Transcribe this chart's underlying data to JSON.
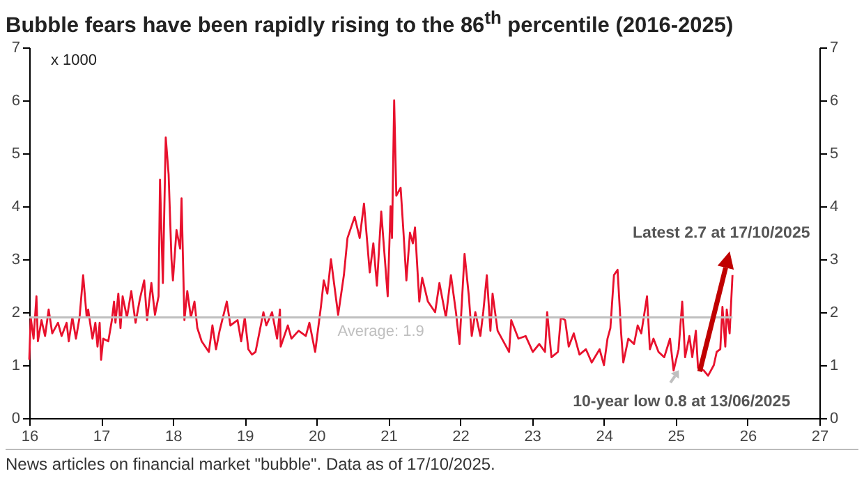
{
  "chart_data": {
    "type": "line",
    "title": "Bubble fears have been rapidly rising to the 86$^{th}$ percentile (2016-2025)",
    "ylabel": "x 1000",
    "x": [
      16.0,
      16.02,
      16.06,
      16.1,
      16.12,
      16.17,
      16.22,
      16.27,
      16.32,
      16.4,
      16.45,
      16.52,
      16.55,
      16.6,
      16.65,
      16.7,
      16.75,
      16.8,
      16.82,
      16.88,
      16.92,
      16.95,
      16.98,
      17.0,
      17.03,
      17.1,
      17.15,
      17.18,
      17.2,
      17.24,
      17.27,
      17.3,
      17.36,
      17.42,
      17.48,
      17.54,
      17.6,
      17.64,
      17.7,
      17.75,
      17.8,
      17.82,
      17.86,
      17.9,
      17.94,
      17.98,
      18.0,
      18.05,
      18.1,
      18.12,
      18.16,
      18.2,
      18.25,
      18.3,
      18.34,
      18.4,
      18.5,
      18.55,
      18.6,
      18.65,
      18.75,
      18.8,
      18.9,
      18.95,
      19.0,
      19.05,
      19.1,
      19.15,
      19.26,
      19.3,
      19.38,
      19.45,
      19.49,
      19.5,
      19.6,
      19.65,
      19.75,
      19.85,
      19.9,
      19.98,
      20.06,
      20.1,
      20.15,
      20.2,
      20.3,
      20.38,
      20.43,
      20.53,
      20.6,
      20.66,
      20.74,
      20.79,
      20.84,
      20.9,
      20.99,
      21.03,
      21.05,
      21.08,
      21.11,
      21.17,
      21.21,
      21.25,
      21.3,
      21.34,
      21.37,
      21.43,
      21.47,
      21.55,
      21.65,
      21.71,
      21.8,
      21.87,
      21.94,
      21.99,
      22.06,
      22.12,
      22.16,
      22.21,
      22.28,
      22.32,
      22.37,
      22.42,
      22.45,
      22.52,
      22.62,
      22.68,
      22.71,
      22.81,
      22.91,
      23.01,
      23.1,
      23.18,
      23.21,
      23.27,
      23.36,
      23.4,
      23.46,
      23.51,
      23.58,
      23.66,
      23.75,
      23.83,
      23.94,
      24.0,
      24.05,
      24.09,
      24.14,
      24.19,
      24.24,
      24.27,
      24.34,
      24.42,
      24.47,
      24.52,
      24.6,
      24.64,
      24.69,
      24.76,
      24.84,
      24.92,
      24.97,
      25.04,
      25.09,
      25.13,
      25.19,
      25.23,
      25.28,
      25.31,
      25.39,
      25.45,
      25.53,
      25.57,
      25.62,
      25.65,
      25.69,
      25.71,
      25.75,
      25.79
    ],
    "series": [
      {
        "color": "#e8112d",
        "values": [
          1.1,
          1.9,
          1.5,
          2.3,
          1.45,
          1.85,
          1.55,
          2.05,
          1.6,
          1.8,
          1.55,
          1.8,
          1.45,
          1.9,
          1.5,
          1.9,
          2.7,
          1.9,
          2.05,
          1.5,
          1.8,
          1.35,
          1.8,
          1.1,
          1.5,
          1.45,
          1.85,
          2.2,
          1.8,
          2.35,
          1.7,
          2.3,
          1.9,
          2.4,
          1.8,
          2.25,
          2.6,
          1.85,
          2.55,
          1.95,
          2.3,
          4.5,
          2.55,
          5.3,
          4.6,
          3.0,
          2.6,
          3.55,
          3.2,
          4.15,
          1.85,
          2.4,
          1.9,
          2.2,
          1.7,
          1.45,
          1.25,
          1.75,
          1.3,
          1.65,
          2.2,
          1.75,
          1.85,
          1.45,
          1.9,
          1.3,
          1.2,
          1.25,
          2.0,
          1.75,
          2.0,
          1.5,
          2.05,
          1.35,
          1.75,
          1.5,
          1.65,
          1.55,
          1.8,
          1.25,
          2.1,
          2.6,
          2.35,
          3.0,
          1.95,
          2.7,
          3.4,
          3.8,
          3.4,
          4.05,
          2.75,
          3.3,
          2.5,
          3.9,
          2.3,
          4.0,
          3.4,
          6.0,
          4.2,
          4.35,
          3.5,
          2.6,
          3.5,
          3.3,
          3.6,
          2.2,
          2.65,
          2.2,
          2.0,
          2.55,
          1.9,
          2.7,
          2.0,
          1.4,
          3.1,
          2.3,
          1.55,
          2.0,
          1.55,
          2.0,
          2.7,
          1.65,
          2.35,
          1.65,
          1.4,
          1.25,
          1.85,
          1.5,
          1.55,
          1.25,
          1.4,
          1.25,
          2.0,
          1.15,
          1.25,
          1.9,
          1.85,
          1.35,
          1.6,
          1.2,
          1.3,
          1.05,
          1.3,
          1.0,
          1.5,
          1.7,
          2.7,
          2.8,
          1.6,
          1.05,
          1.5,
          1.4,
          1.75,
          1.6,
          2.3,
          1.3,
          1.5,
          1.25,
          1.15,
          1.5,
          0.9,
          1.3,
          2.2,
          1.15,
          1.55,
          1.15,
          1.65,
          0.95,
          0.9,
          0.8,
          1.0,
          1.25,
          1.3,
          2.1,
          1.35,
          2.05,
          1.6,
          2.7
        ]
      }
    ],
    "xlim": [
      16,
      27
    ],
    "xticks": [
      16,
      17,
      18,
      19,
      20,
      21,
      22,
      23,
      24,
      25,
      26,
      27
    ],
    "ylim": [
      0,
      7
    ],
    "yticks": [
      0,
      1,
      2,
      3,
      4,
      5,
      6,
      7
    ],
    "y2lim": [
      0,
      7
    ],
    "y2ticks": [
      0,
      1,
      2,
      3,
      4,
      5,
      6,
      7
    ],
    "ref_lines": [
      {
        "axis": "y",
        "value": 1.9,
        "label": "Average: 1.9",
        "color": "#bfbfbf"
      }
    ],
    "annotations": [
      {
        "text": "Latest 2.7 at 17/10/2025",
        "x": 25.79,
        "y": 2.7
      },
      {
        "text": "10-year low 0.8 at 13/06/2025",
        "x": 25.45,
        "y": 0.8
      },
      "News articles on financial market \"bubble\". Data as of 17/10/2025."
    ],
    "grid": false
  }
}
